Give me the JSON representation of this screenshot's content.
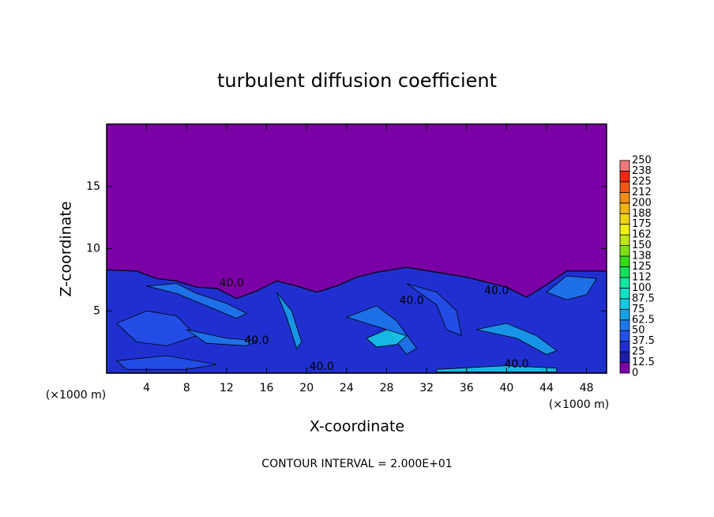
{
  "chart_data": {
    "type": "contour",
    "title": "turbulent diffusion coefficient",
    "xlabel": "X-coordinate",
    "ylabel": "Z-coordinate",
    "x_unit_left": "(×1000 m)",
    "x_unit_right": "(×1000 m)",
    "footer": "CONTOUR INTERVAL = 2.000E+01",
    "xlim": [
      0,
      50
    ],
    "ylim": [
      0,
      20
    ],
    "xticks": [
      4,
      8,
      12,
      16,
      20,
      24,
      28,
      32,
      36,
      40,
      44,
      48
    ],
    "yticks": [
      5,
      10,
      15
    ],
    "colorbar_levels": [
      0,
      12.5,
      25,
      37.5,
      50,
      62.5,
      75,
      87.5,
      100,
      112,
      125,
      138,
      150,
      162,
      175,
      188,
      200,
      212,
      225,
      238,
      250
    ],
    "colorbar_colors": [
      "#7a00a6",
      "#1c1ca8",
      "#2030d0",
      "#2450e8",
      "#1e78ea",
      "#16a0e8",
      "#14c8e4",
      "#14e0c8",
      "#14e6a0",
      "#14e05a",
      "#32dc14",
      "#7ce014",
      "#c0e614",
      "#f0f014",
      "#f0d414",
      "#f0b414",
      "#f08c14",
      "#f05a14",
      "#f02814",
      "#f07a7a"
    ],
    "contour_labels": [
      "40.0",
      "40.0",
      "40.0",
      "40.0",
      "40.0",
      "40.0"
    ]
  }
}
